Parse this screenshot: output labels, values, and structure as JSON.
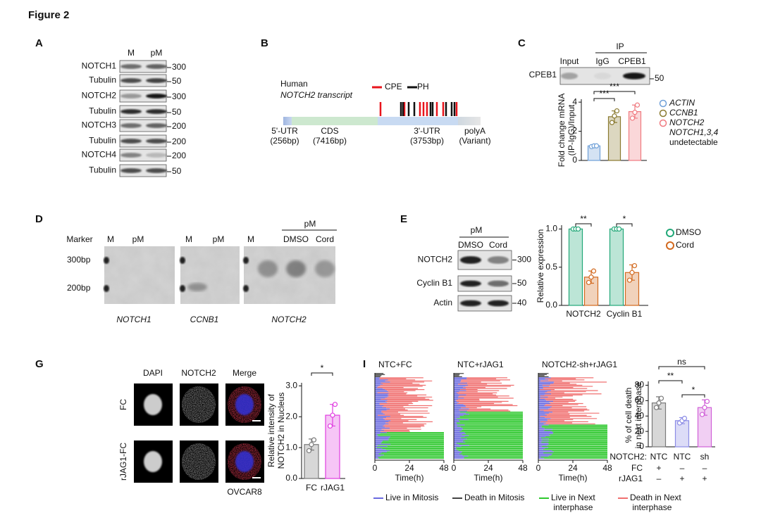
{
  "figure_title": "Figure 2",
  "panel_a": {
    "label": "A",
    "lanes": [
      "M",
      "pM"
    ],
    "rows": [
      {
        "name": "NOTCH1",
        "marker": "300"
      },
      {
        "name": "Tubulin",
        "marker": "50"
      },
      {
        "name": "NOTCH2",
        "marker": "300"
      },
      {
        "name": "Tubulin",
        "marker": "50"
      },
      {
        "name": "NOTCH3",
        "marker": "200"
      },
      {
        "name": "Tubulin",
        "marker": "200"
      },
      {
        "name": "NOTCH4",
        "marker": "200"
      },
      {
        "name": "Tubulin",
        "marker": "50"
      }
    ]
  },
  "panel_b": {
    "label": "B",
    "species": "Human",
    "transcript": "NOTCH2 transcript",
    "legend": [
      {
        "name": "CPE",
        "color": "#e8141c"
      },
      {
        "name": "PH",
        "color": "#111111"
      }
    ],
    "regions": [
      {
        "name": "5'-UTR",
        "size": "(256bp)"
      },
      {
        "name": "CDS",
        "size": "(7416bp)"
      },
      {
        "name": "3'-UTR",
        "size": "(3753bp)"
      },
      {
        "name": "polyA",
        "size": "(Variant)"
      }
    ]
  },
  "panel_c": {
    "label": "C",
    "ip_label": "IP",
    "lanes": [
      "Input",
      "IgG",
      "CPEB1"
    ],
    "blot_row": "CPEB1",
    "marker": "50",
    "chart_data": {
      "type": "bar",
      "ylabel": [
        "Fold change mRNA",
        "(IP-IgG)/Input"
      ],
      "categories": [
        "ACTIN",
        "CCNB1",
        "NOTCH2"
      ],
      "values": [
        1.0,
        3.0,
        3.35
      ],
      "errors": [
        0.05,
        0.4,
        0.45
      ],
      "points": [
        [
          0.95,
          1.0,
          1.0
        ],
        [
          2.6,
          3.05,
          3.4
        ],
        [
          2.9,
          3.3,
          3.8
        ]
      ],
      "colors": [
        "#6fa0d8",
        "#8a7a30",
        "#f07a80"
      ],
      "ylim": [
        0,
        4.2
      ],
      "yticks": [
        0,
        2,
        4
      ],
      "significance": [
        "***",
        "***"
      ],
      "note": [
        "NOTCH1,3,4",
        "undetectable"
      ]
    }
  },
  "panel_d": {
    "label": "D",
    "gels": [
      {
        "lanes": [
          "Marker",
          "M",
          "pM"
        ],
        "caption": "NOTCH1"
      },
      {
        "lanes": [
          "M",
          "pM"
        ],
        "caption": "CCNB1"
      },
      {
        "lanes": [
          "M",
          "DMSO",
          "Cord"
        ],
        "group": "pM",
        "caption": "NOTCH2"
      }
    ],
    "sizes": [
      "300bp",
      "200bp"
    ]
  },
  "panel_e": {
    "label": "E",
    "group": "pM",
    "lanes": [
      "DMSO",
      "Cord"
    ],
    "rows": [
      {
        "name": "NOTCH2",
        "marker": "300"
      },
      {
        "name": "Cyclin B1",
        "marker": "50"
      },
      {
        "name": "Actin",
        "marker": "40"
      }
    ],
    "chart_data": {
      "type": "bar",
      "ylabel": "Relative expression",
      "categories": [
        "NOTCH2",
        "Cyclin B1"
      ],
      "series": [
        {
          "name": "DMSO",
          "color": "#22a878",
          "values": [
            1.0,
            1.0
          ],
          "errors": [
            0.0,
            0.0
          ],
          "points": [
            [
              1.0,
              1.0,
              1.0
            ],
            [
              1.0,
              1.0,
              1.0
            ]
          ]
        },
        {
          "name": "Cord",
          "color": "#d2691e",
          "values": [
            0.37,
            0.43
          ],
          "errors": [
            0.08,
            0.1
          ],
          "points": [
            [
              0.3,
              0.37,
              0.45
            ],
            [
              0.33,
              0.43,
              0.52
            ]
          ]
        }
      ],
      "ylim": [
        0,
        1.05
      ],
      "yticks": [
        {
          "value": 0,
          "label": "0.0"
        },
        {
          "value": 0.5,
          "label": "0.5"
        },
        {
          "value": 1,
          "label": "1.0"
        }
      ],
      "significance": [
        "**",
        "*"
      ]
    }
  },
  "panel_g": {
    "label": "G",
    "channels": [
      "DAPI",
      "NOTCH2",
      "Merge"
    ],
    "conditions": [
      "FC",
      "rJAG1-FC"
    ],
    "cell_line": "OVCAR8",
    "chart_data": {
      "type": "bar",
      "ylabel": [
        "Relative intensity of",
        "NOTCH2 in Nucleus"
      ],
      "categories": [
        "FC",
        "rJAG1"
      ],
      "values": [
        1.1,
        2.05
      ],
      "errors": [
        0.18,
        0.35
      ],
      "points": [
        [
          0.9,
          1.1,
          1.25
        ],
        [
          1.7,
          2.05,
          2.4
        ]
      ],
      "colors": [
        "#7a7a7a",
        "#e03ee0"
      ],
      "ylim": [
        0,
        3.1
      ],
      "yticks": [
        {
          "value": 0,
          "label": "0.0"
        },
        {
          "value": 1,
          "label": "1.0"
        },
        {
          "value": 2,
          "label": "2.0"
        },
        {
          "value": 3,
          "label": "3.0"
        }
      ],
      "significance": [
        "*"
      ]
    }
  },
  "panel_i": {
    "label": "I",
    "timelapse": {
      "titles": [
        "NTC+FC",
        "NTC+rJAG1",
        "NOTCH2-sh+rJAG1"
      ],
      "xlim": [
        0,
        48
      ],
      "xticks": [
        0,
        24,
        48
      ],
      "xlabel": "Time(h)"
    },
    "legend": [
      {
        "name": "Live in Mitosis",
        "color": "#6a6ae0"
      },
      {
        "name": "Death in Mitosis",
        "color": "#444444"
      },
      {
        "name": "Live in Next interphase",
        "color": "#2ec82e"
      },
      {
        "name": "Death in Next interphase",
        "color": "#f07070"
      }
    ],
    "chart_data": {
      "type": "bar",
      "ylabel": [
        "% of cell death",
        "in next interphase"
      ],
      "values": [
        57,
        34,
        51
      ],
      "errors": [
        8,
        4,
        10
      ],
      "points": [
        [
          51,
          57,
          63
        ],
        [
          31,
          34,
          37
        ],
        [
          42,
          51,
          59
        ]
      ],
      "colors": [
        "#7a7a7a",
        "#8c8ce6",
        "#d060d8"
      ],
      "ylim": [
        0,
        85
      ],
      "yticks": [
        0,
        20,
        40,
        60,
        80
      ],
      "significance": [
        "ns",
        "**",
        "*"
      ]
    },
    "conditions": {
      "header": "NOTCH2:",
      "values": [
        "NTC",
        "NTC",
        "sh"
      ],
      "rows": [
        {
          "name": "FC",
          "signs": [
            "+",
            "–",
            "–"
          ]
        },
        {
          "name": "rJAG1",
          "signs": [
            "–",
            "+",
            "+"
          ]
        }
      ]
    }
  }
}
